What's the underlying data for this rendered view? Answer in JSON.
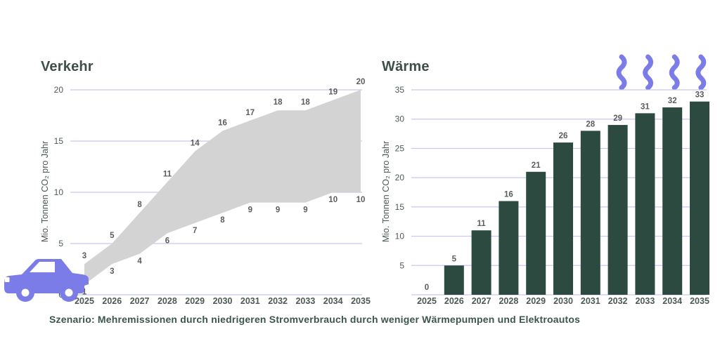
{
  "caption": "Szenario: Mehremissionen durch niedrigeren Stromverbrauch durch weniger Wärmepumpen und Elektroautos",
  "colors": {
    "background": "#ffffff",
    "grid": "#c6c7f0",
    "area_fill": "#d3d3d3",
    "bar_fill": "#2d4a41",
    "accent_purple": "#7b7ce8",
    "title_text": "#3e4f4a",
    "axis_text": "#4d5955",
    "data_label_text": "#5c5c5c",
    "caption_text": "#3c564e"
  },
  "icons": {
    "car": "car-icon",
    "steam": "steam-icon",
    "steam_count": 4
  },
  "chart_data": [
    {
      "id": "verkehr",
      "type": "area",
      "title": "Verkehr",
      "ylabel": "Mio. Tonnen CO₂ pro Jahr",
      "categories": [
        "2025",
        "2026",
        "2027",
        "2028",
        "2029",
        "2030",
        "2031",
        "2032",
        "2033",
        "2034",
        "2035"
      ],
      "series": [
        {
          "name": "upper",
          "values": [
            3,
            5,
            8,
            11,
            14,
            16,
            17,
            18,
            18,
            19,
            20
          ]
        },
        {
          "name": "lower",
          "values": [
            1,
            3,
            4,
            6,
            7,
            8,
            9,
            9,
            9,
            10,
            10
          ]
        }
      ],
      "ylim": [
        0,
        20
      ],
      "yticks": [
        0,
        5,
        10,
        15,
        20
      ],
      "grid": true,
      "legend": false
    },
    {
      "id": "waerme",
      "type": "bar",
      "title": "Wärme",
      "ylabel": "Mio. Tonnen CO₂ pro Jahr",
      "categories": [
        "2025",
        "2026",
        "2027",
        "2028",
        "2029",
        "2030",
        "2031",
        "2032",
        "2033",
        "2034",
        "2035"
      ],
      "values": [
        0,
        5,
        11,
        16,
        21,
        26,
        28,
        29,
        31,
        32,
        33
      ],
      "ylim": [
        0,
        35
      ],
      "yticks": [
        0,
        5,
        10,
        15,
        20,
        25,
        30,
        35
      ],
      "grid": true,
      "legend": false
    }
  ]
}
